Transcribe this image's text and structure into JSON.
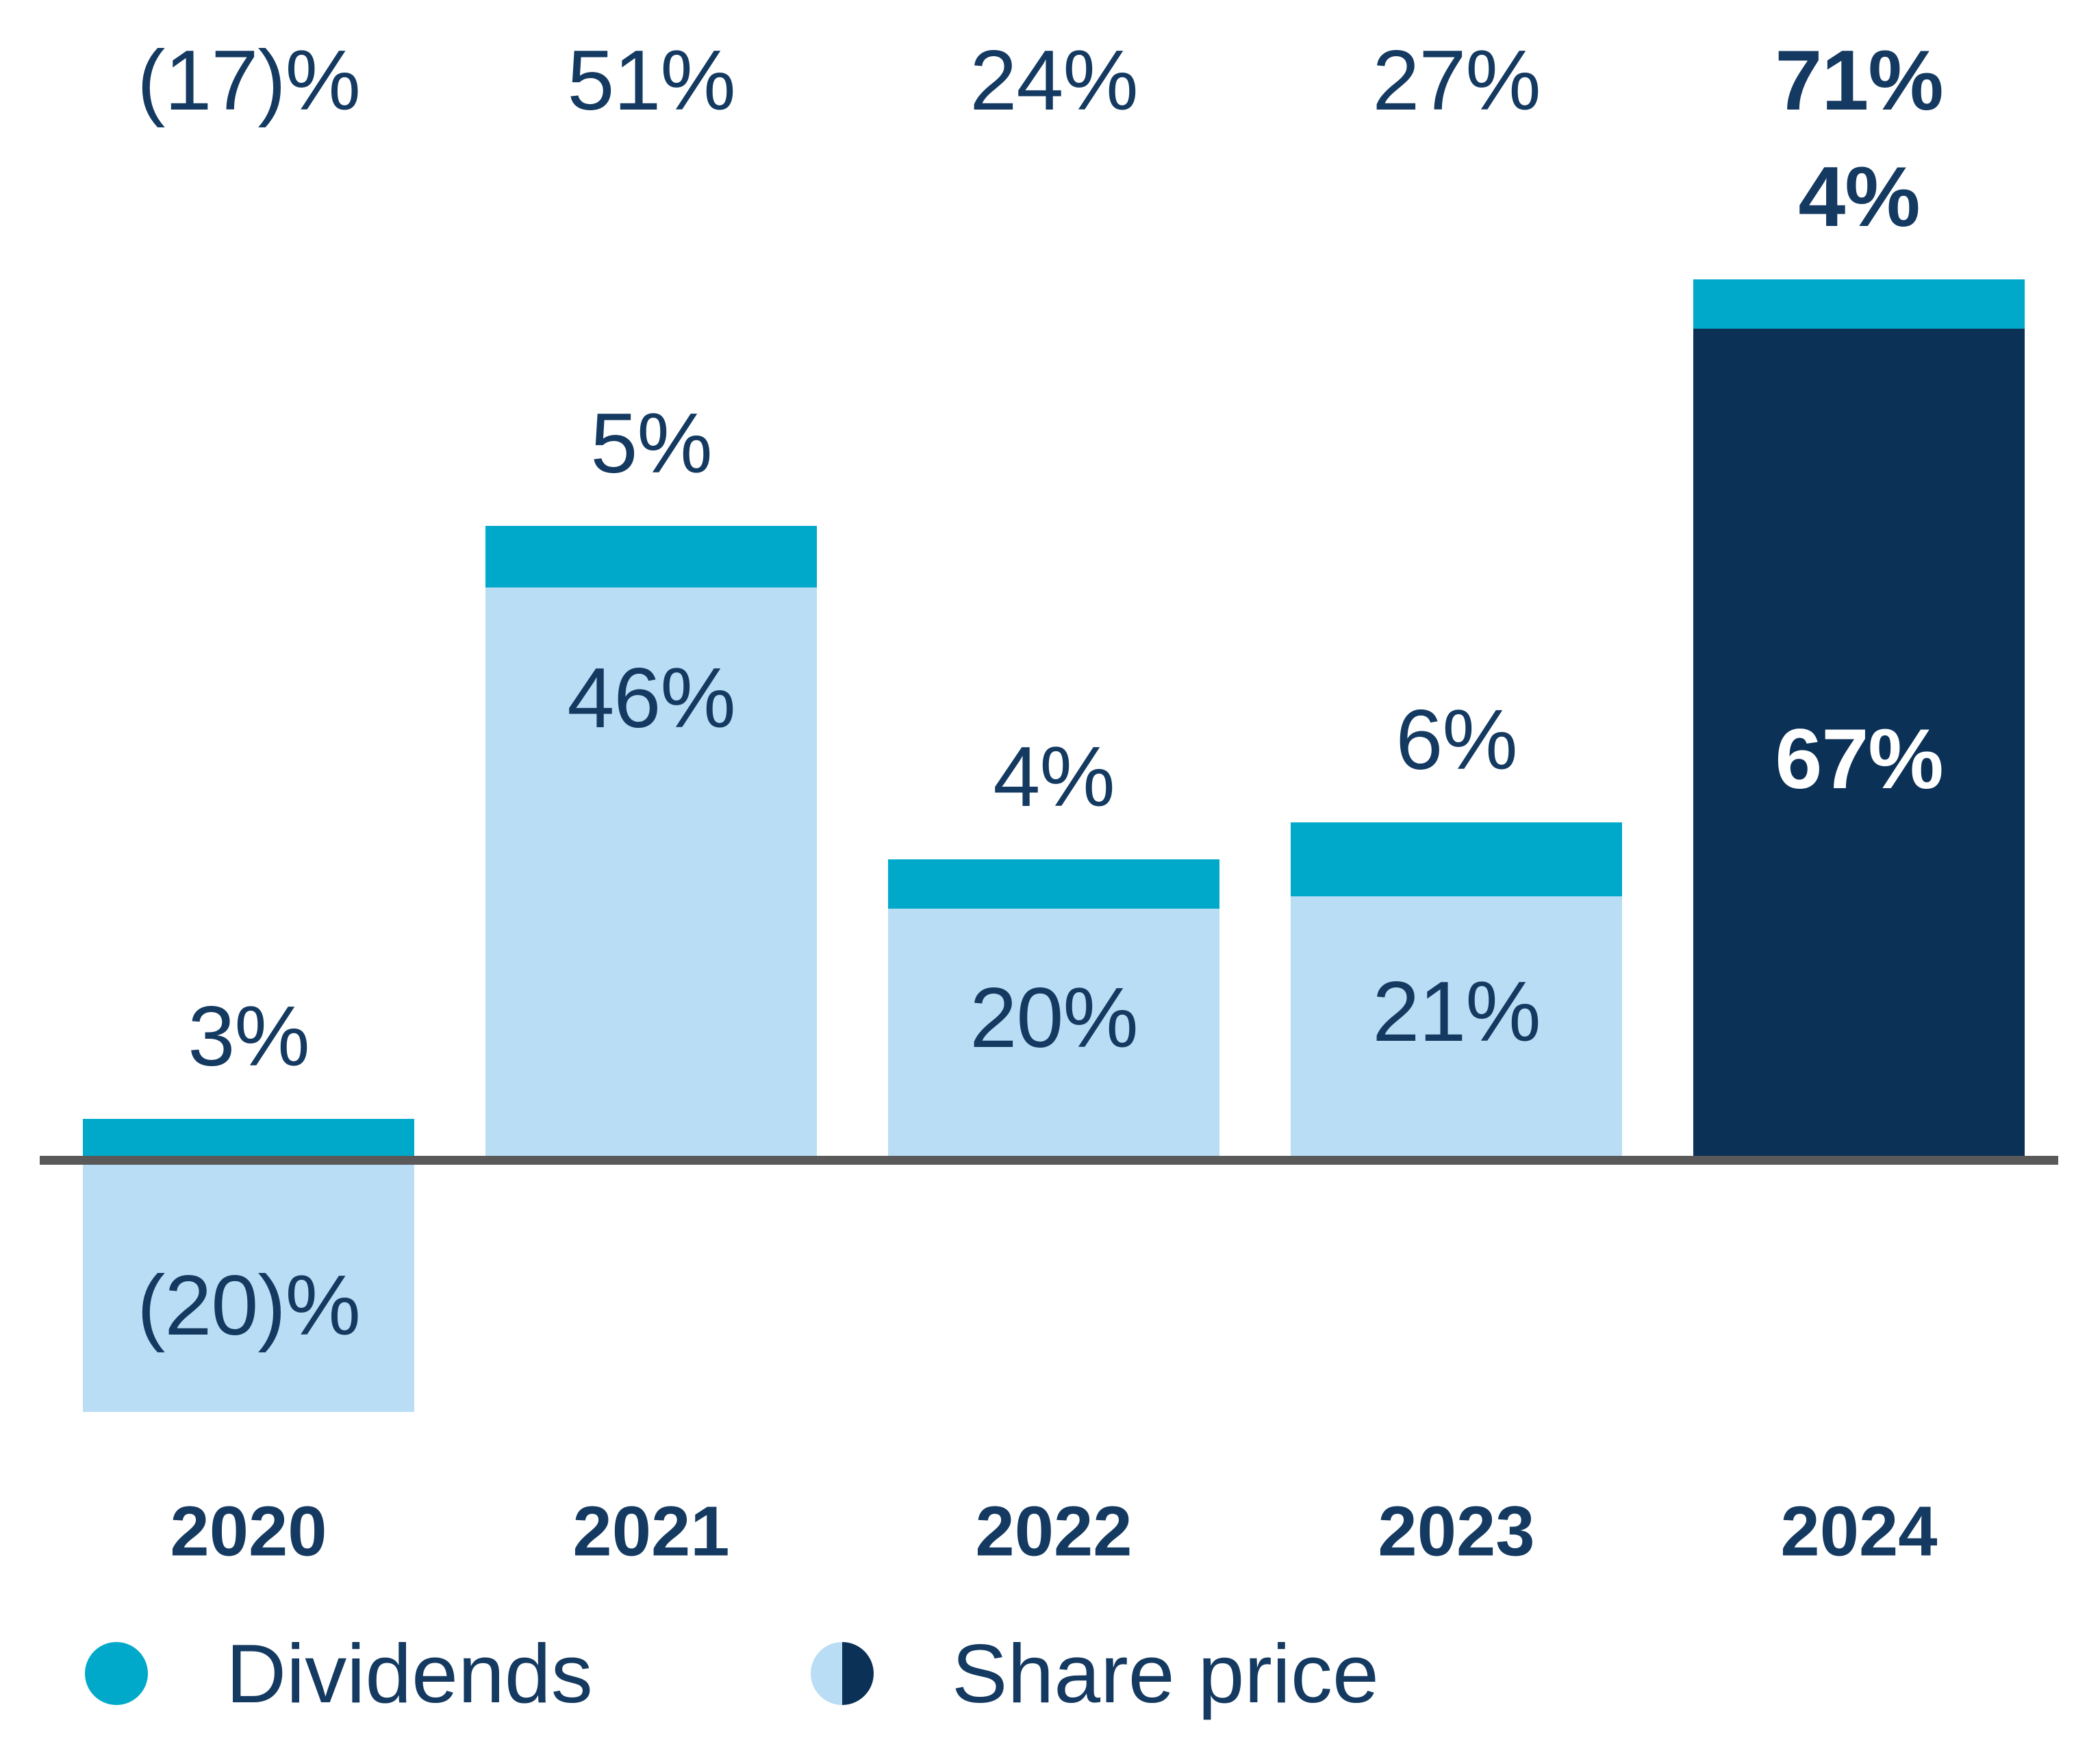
{
  "chart_data": {
    "type": "bar",
    "stacked": true,
    "title": "",
    "categories": [
      "2020",
      "2021",
      "2022",
      "2023",
      "2024"
    ],
    "series": [
      {
        "name": "Dividends",
        "values": [
          3,
          5,
          4,
          6,
          4
        ]
      },
      {
        "name": "Share price",
        "values": [
          -20,
          46,
          20,
          21,
          67
        ]
      }
    ],
    "totals": [
      -17,
      51,
      24,
      27,
      71
    ],
    "labels": {
      "totals": [
        "(17)%",
        "51%",
        "24%",
        "27%",
        "71%"
      ],
      "dividends": [
        "3%",
        "5%",
        "4%",
        "6%",
        "4%"
      ],
      "share_price": [
        "(20)%",
        "46%",
        "20%",
        "21%",
        "67%"
      ]
    },
    "totals_emphasis": [
      false,
      false,
      false,
      false,
      true
    ],
    "highlight_year": "2024",
    "ylim": [
      -20,
      71
    ],
    "grid": false,
    "legend_position": "bottom"
  },
  "legend": {
    "items": [
      {
        "label": "Dividends"
      },
      {
        "label": "Share price"
      }
    ]
  },
  "colors": {
    "dividends": "#00A9C9",
    "share_price_light": "#B9DDF4",
    "share_price_dark": "#0C3157",
    "text": "#153A61",
    "text_on_dark": "#FFFFFF",
    "axis": "#595959",
    "background": "#FFFFFF"
  }
}
